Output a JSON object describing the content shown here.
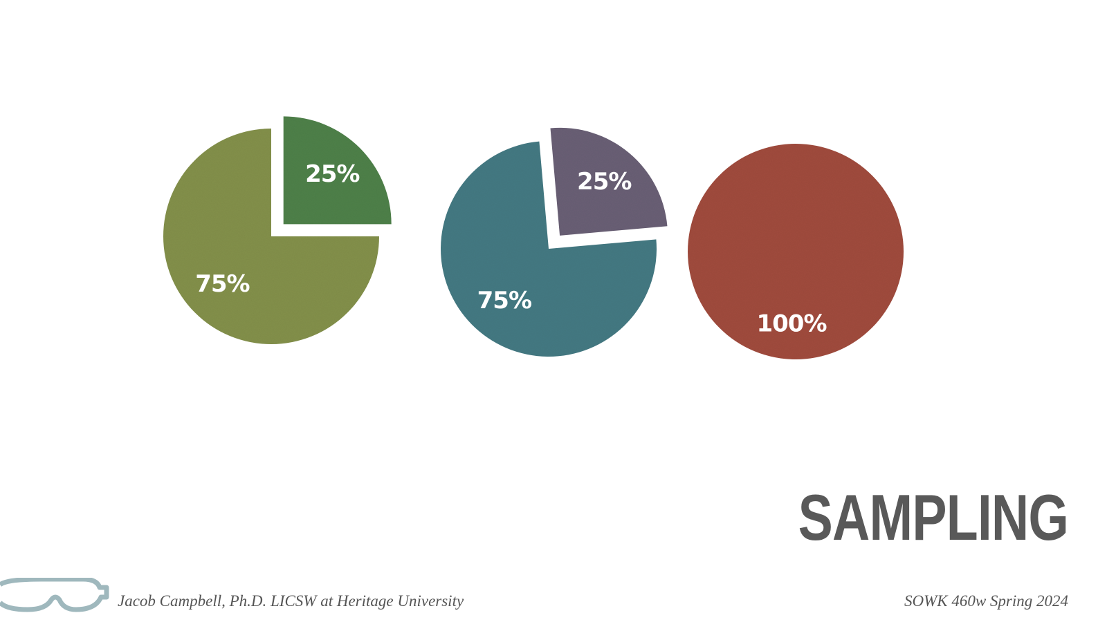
{
  "slide": {
    "title": "SAMPLING",
    "footer_left": "Jacob Campbell, Ph.D. LICSW at Heritage University",
    "footer_right": "SOWK 460w Spring 2024",
    "logo_icon": "goggles-icon",
    "colors": {
      "title": "#595959",
      "footer": "#555555",
      "logo": "#9fb8bd"
    }
  },
  "chart_data": [
    {
      "type": "pie",
      "title": "",
      "slices": [
        {
          "label": "75%",
          "value": 75,
          "color": "#83904a",
          "exploded": false
        },
        {
          "label": "25%",
          "value": 25,
          "color": "#4e8049",
          "exploded": true
        }
      ],
      "start_angle": 90,
      "legend": "none"
    },
    {
      "type": "pie",
      "title": "",
      "slices": [
        {
          "label": "25%",
          "value": 25,
          "color": "#695f75",
          "exploded": true
        },
        {
          "label": "75%",
          "value": 75,
          "color": "#447982",
          "exploded": false
        }
      ],
      "start_angle": 355,
      "legend": "none"
    },
    {
      "type": "pie",
      "title": "",
      "slices": [
        {
          "label": "100%",
          "value": 100,
          "color": "#a04b3d",
          "exploded": false
        }
      ],
      "start_angle": 0,
      "legend": "none"
    }
  ]
}
